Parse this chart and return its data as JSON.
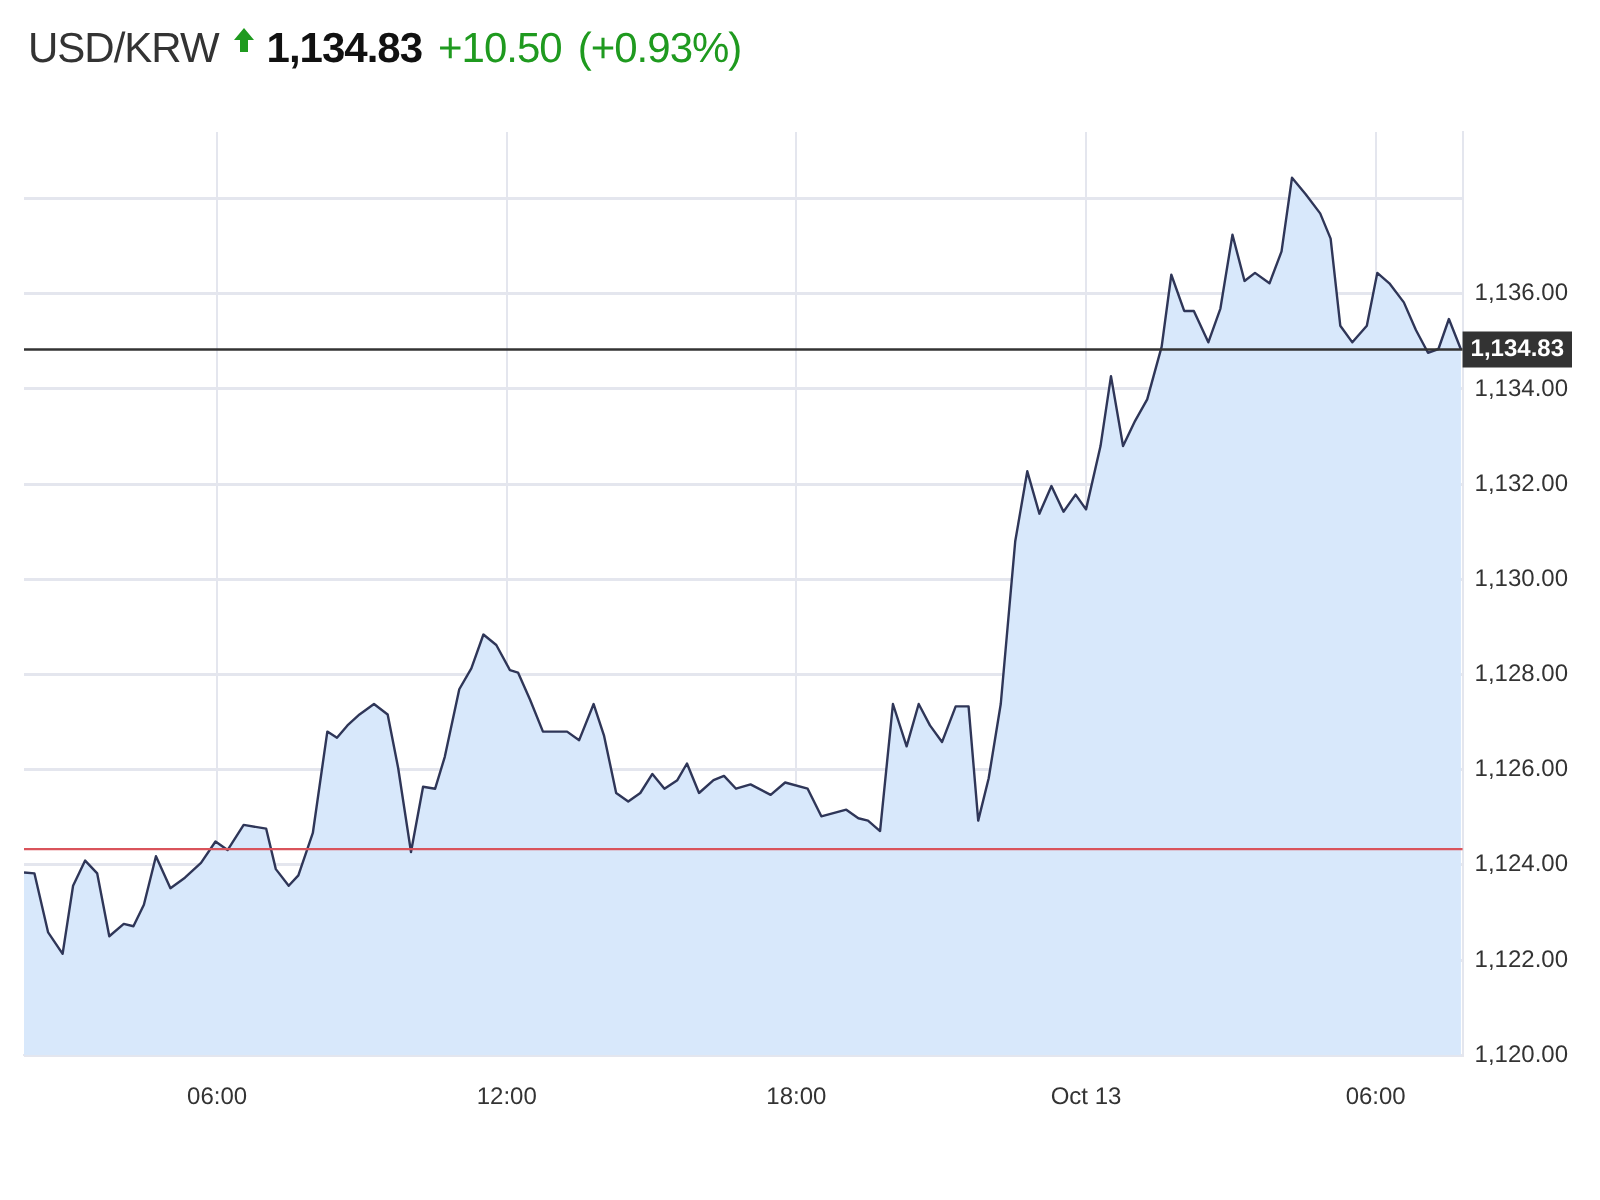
{
  "chart_data": {
    "type": "area",
    "title": "USD/KRW",
    "annotations": [
      "1,134.83",
      "+10.50",
      "(+0.93%)"
    ],
    "x": [
      "--10-12T02:00",
      "--10-12T02:13",
      "--10-12T02:30",
      "--10-12T02:48",
      "--10-12T03:01",
      "--10-12T03:16",
      "--10-12T03:31",
      "--10-12T03:46",
      "--10-12T04:04",
      "--10-12T04:16",
      "--10-12T04:29",
      "--10-12T04:44",
      "--10-12T05:02",
      "--10-12T05:20",
      "--10-12T05:40",
      "--10-12T05:58",
      "--10-12T06:13",
      "--10-12T06:33",
      "--10-12T07:01",
      "--10-12T07:13",
      "--10-12T07:29",
      "--10-12T07:41",
      "--10-12T07:59",
      "--10-12T08:17",
      "--10-12T08:29",
      "--10-12T08:42",
      "--10-12T08:57",
      "--10-12T09:15",
      "--10-12T09:32",
      "--10-12T09:45",
      "--10-12T10:01",
      "--10-12T10:16",
      "--10-12T10:31",
      "--10-12T10:43",
      "--10-12T11:01",
      "--10-12T11:16",
      "--10-12T11:31",
      "--10-12T11:47",
      "--10-12T12:04",
      "--10-12T12:14",
      "--10-12T12:29",
      "--10-12T12:45",
      "--10-12T13:15",
      "--10-12T13:30",
      "--10-12T13:48",
      "--10-12T14:01",
      "--10-12T14:16",
      "--10-12T14:31",
      "--10-12T14:46",
      "--10-12T15:01",
      "--10-12T15:16",
      "--10-12T15:32",
      "--10-12T15:44",
      "--10-12T15:59",
      "--10-12T16:17",
      "--10-12T16:30",
      "--10-12T16:45",
      "--10-12T17:03",
      "--10-12T17:28",
      "--10-12T17:46",
      "--10-12T18:14",
      "--10-12T18:31",
      "--10-12T19:02",
      "--10-12T19:17",
      "--10-12T19:29",
      "--10-12T19:44",
      "--10-12T20:00",
      "--10-12T20:17",
      "--10-12T20:32",
      "--10-12T20:46",
      "--10-12T21:01",
      "--10-12T21:18",
      "--10-12T21:34",
      "--10-12T21:46",
      "--10-12T21:59",
      "--10-12T22:14",
      "--10-12T22:32",
      "--10-12T22:47",
      "--10-12T23:02",
      "--10-12T23:17",
      "--10-12T23:32",
      "--10-12T23:47",
      "--10-13T00:00",
      "--10-13T00:18",
      "--10-13T00:31",
      "--10-13T00:46",
      "--10-13T01:01",
      "--10-13T01:16",
      "--10-13T01:34",
      "--10-13T01:46",
      "--10-13T02:02",
      "--10-13T02:14",
      "--10-13T02:32",
      "--10-13T02:47",
      "--10-13T03:02",
      "--10-13T03:17",
      "--10-13T03:30",
      "--10-13T03:48",
      "--10-13T04:03",
      "--10-13T04:16",
      "--10-13T04:33",
      "--10-13T04:51",
      "--10-13T05:04",
      "--10-13T05:16",
      "--10-13T05:31",
      "--10-13T05:49",
      "--10-13T06:02",
      "--10-13T06:17",
      "--10-13T06:35",
      "--10-13T06:50",
      "--10-13T07:05",
      "--10-13T07:18",
      "--10-13T07:31",
      "--10-13T07:46"
    ],
    "series": [
      {
        "color": "#d8e8fb",
        "values": [
          1123.84,
          1123.82,
          1122.58,
          1122.13,
          1123.56,
          1124.09,
          1123.82,
          1122.5,
          1122.76,
          1122.71,
          1123.16,
          1124.18,
          1123.51,
          1123.73,
          1124.04,
          1124.49,
          1124.31,
          1124.84,
          1124.76,
          1123.91,
          1123.56,
          1123.78,
          1124.67,
          1126.8,
          1126.67,
          1126.93,
          1127.16,
          1127.38,
          1127.16,
          1126.04,
          1124.27,
          1125.64,
          1125.6,
          1126.27,
          1127.69,
          1128.13,
          1128.84,
          1128.62,
          1128.09,
          1128.04,
          1127.47,
          1126.8,
          1126.8,
          1126.62,
          1127.38,
          1126.71,
          1125.51,
          1125.33,
          1125.51,
          1125.91,
          1125.6,
          1125.78,
          1126.13,
          1125.51,
          1125.78,
          1125.87,
          1125.6,
          1125.69,
          1125.47,
          1125.73,
          1125.6,
          1125.02,
          1125.16,
          1124.98,
          1124.93,
          1124.71,
          1127.38,
          1126.49,
          1127.38,
          1126.93,
          1126.58,
          1127.33,
          1127.33,
          1124.93,
          1125.82,
          1127.38,
          1130.8,
          1132.27,
          1131.38,
          1131.96,
          1131.42,
          1131.78,
          1131.47,
          1132.8,
          1134.27,
          1132.8,
          1133.33,
          1133.78,
          1134.89,
          1136.4,
          1135.64,
          1135.64,
          1134.98,
          1135.69,
          1137.24,
          1136.27,
          1136.44,
          1136.22,
          1136.89,
          1138.44,
          1138.09,
          1137.69,
          1137.16,
          1135.33,
          1134.98,
          1135.33,
          1136.44,
          1136.22,
          1135.82,
          1135.24,
          1134.76,
          1134.84,
          1135.47,
          1134.83
        ]
      }
    ],
    "xlim": [
      "--10-12T02:00",
      "--10-13T07:48"
    ],
    "xticks": [
      {
        "value": "--10-12T06:00",
        "label": "06:00"
      },
      {
        "value": "--10-12T12:00",
        "label": "12:00"
      },
      {
        "value": "--10-12T18:00",
        "label": "18:00"
      },
      {
        "value": "--10-13T00:00",
        "label": "Oct 13"
      },
      {
        "value": "--10-13T06:00",
        "label": "06:00"
      }
    ],
    "ylim": [
      1120,
      1139.4
    ],
    "yticks": [
      {
        "value": 1120,
        "label": "1,120.00"
      },
      {
        "value": 1122,
        "label": "1,122.00"
      },
      {
        "value": 1124,
        "label": "1,124.00"
      },
      {
        "value": 1126,
        "label": "1,126.00"
      },
      {
        "value": 1128,
        "label": "1,128.00"
      },
      {
        "value": 1130,
        "label": "1,130.00"
      },
      {
        "value": 1132,
        "label": "1,132.00"
      },
      {
        "value": 1134,
        "label": "1,134.00"
      },
      {
        "value": 1136,
        "label": "1,136.00"
      },
      {
        "value": 1138,
        "label": null
      }
    ],
    "ref_lines": [
      {
        "axis": "y",
        "value": 1134.83,
        "label": "1,134.83",
        "color": "#333333"
      },
      {
        "axis": "y",
        "value": 1124.33,
        "color": "#d9535b"
      }
    ],
    "grid": true,
    "legend": false,
    "marker": "none",
    "line_style": "solid"
  }
}
